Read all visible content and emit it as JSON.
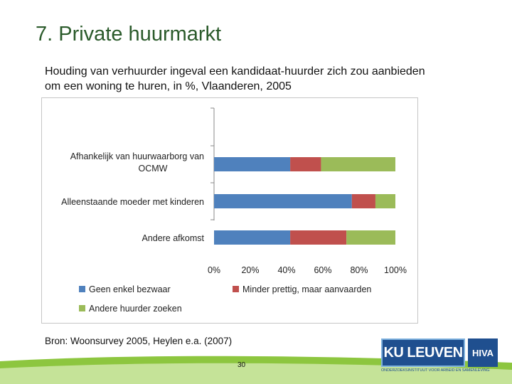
{
  "slide": {
    "title": "7. Private huurmarkt",
    "subtitle": "Houding van verhuurder ingeval een kandidaat-huurder zich zou aanbieden om een woning te huren, in %, Vlaanderen, 2005",
    "source": "Bron: Woonsurvey 2005, Heylen e.a. (2007)",
    "page_number": "30"
  },
  "logo": {
    "primary": "KU LEUVEN",
    "secondary": "HIVA",
    "tagline": "ONDERZOEKSINSTITUUT VOOR ARBEID EN SAMENLEVING"
  },
  "colors": {
    "title": "#2a5a2a",
    "series_1": "#4f81bd",
    "series_2": "#c0504d",
    "series_3": "#9bbb59",
    "footer_green": "#8dc63f",
    "logo_blue": "#1f4f8f"
  },
  "chart_data": {
    "type": "bar",
    "orientation": "horizontal",
    "stacked": "percent",
    "categories": [
      "Afhankelijk van huurwaarborg van OCMW",
      "Alleenstaande moeder met kinderen",
      "Andere afkomst"
    ],
    "series": [
      {
        "name": "Geen enkel bezwaar",
        "values": [
          42,
          76,
          42
        ]
      },
      {
        "name": "Minder prettig, maar aanvaarden",
        "values": [
          17,
          13,
          31
        ]
      },
      {
        "name": "Andere huurder zoeken",
        "values": [
          41,
          11,
          27
        ]
      }
    ],
    "xlim": [
      0,
      100
    ],
    "xticks": [
      "0%",
      "20%",
      "40%",
      "60%",
      "80%",
      "100%"
    ],
    "legend_position": "bottom",
    "grid": false
  }
}
